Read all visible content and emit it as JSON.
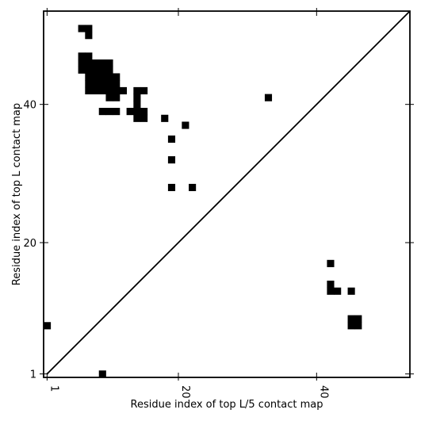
{
  "chart_data": {
    "type": "heatmap",
    "xlabel": "Residue index of top L/5 contact map",
    "ylabel": "Residue index of top L contact map",
    "xlim": [
      0.5,
      53.5
    ],
    "ylim": [
      0.5,
      53.5
    ],
    "x_ticks": [
      1,
      20,
      40
    ],
    "y_ticks": [
      1,
      20,
      40
    ],
    "diagonal_line": true,
    "grid": false,
    "colors": {
      "contact": "#000000",
      "background": "#ffffff",
      "line": "#000000"
    },
    "upper_contacts": [
      [
        6,
        51
      ],
      [
        7,
        51
      ],
      [
        7,
        50
      ],
      [
        6,
        47
      ],
      [
        7,
        47
      ],
      [
        6,
        46
      ],
      [
        7,
        46
      ],
      [
        8,
        46
      ],
      [
        9,
        46
      ],
      [
        10,
        46
      ],
      [
        6,
        45
      ],
      [
        7,
        45
      ],
      [
        8,
        45
      ],
      [
        9,
        45
      ],
      [
        10,
        45
      ],
      [
        7,
        44
      ],
      [
        8,
        44
      ],
      [
        9,
        44
      ],
      [
        10,
        44
      ],
      [
        11,
        44
      ],
      [
        7,
        43
      ],
      [
        8,
        43
      ],
      [
        9,
        43
      ],
      [
        10,
        43
      ],
      [
        11,
        43
      ],
      [
        7,
        42
      ],
      [
        8,
        42
      ],
      [
        9,
        42
      ],
      [
        10,
        42
      ],
      [
        11,
        42
      ],
      [
        12,
        42
      ],
      [
        14,
        42
      ],
      [
        15,
        42
      ],
      [
        10,
        41
      ],
      [
        11,
        41
      ],
      [
        14,
        41
      ],
      [
        33,
        41
      ],
      [
        14,
        40
      ],
      [
        9,
        39
      ],
      [
        10,
        39
      ],
      [
        11,
        39
      ],
      [
        13,
        39
      ],
      [
        14,
        39
      ],
      [
        15,
        39
      ],
      [
        14,
        38
      ],
      [
        15,
        38
      ],
      [
        18,
        38
      ],
      [
        21,
        37
      ],
      [
        19,
        35
      ],
      [
        19,
        32
      ],
      [
        19,
        28
      ],
      [
        22,
        28
      ]
    ],
    "lower_contacts": [
      [
        42,
        13
      ],
      [
        42,
        14
      ],
      [
        43,
        13
      ],
      [
        45,
        13
      ],
      [
        42,
        17
      ],
      [
        45,
        9
      ],
      [
        46,
        9
      ],
      [
        45,
        8
      ],
      [
        46,
        8
      ],
      [
        1,
        8
      ],
      [
        9,
        1
      ]
    ]
  }
}
